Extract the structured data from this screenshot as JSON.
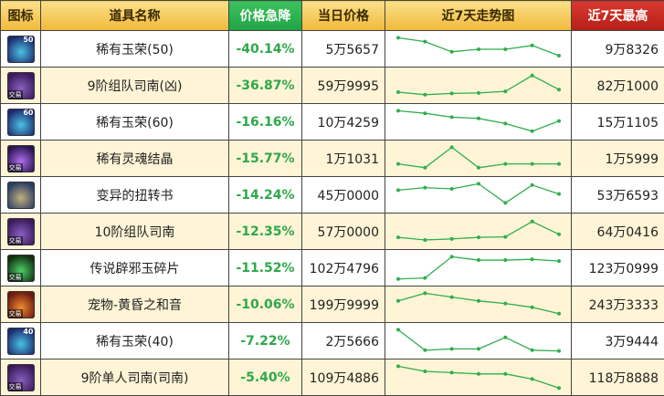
{
  "header": {
    "icon": "图标",
    "name": "道具名称",
    "drop": "价格急降",
    "today": "当日价格",
    "trend": "近7天走势图",
    "max": "近7天最高"
  },
  "rows": [
    {
      "name": "稀有玉荣(50)",
      "pct": "-40.14%",
      "price": "5万5657",
      "max": "9万8326",
      "icon": {
        "name": "jade-50-icon",
        "colors": [
          "#1c2a6e",
          "#4bc1e6"
        ],
        "label": "50",
        "tag": ""
      },
      "trend": [
        0.05,
        0.2,
        0.6,
        0.5,
        0.5,
        0.35,
        0.75
      ]
    },
    {
      "name": "9阶组队司南(凶)",
      "pct": "-36.87%",
      "price": "59万9995",
      "max": "82万1000",
      "icon": {
        "name": "compass-9-icon",
        "colors": [
          "#3a1a5a",
          "#8a60c0"
        ],
        "label": "",
        "tag": "交易"
      },
      "trend": [
        0.75,
        0.85,
        0.8,
        0.78,
        0.72,
        0.1,
        0.65
      ]
    },
    {
      "name": "稀有玉荣(60)",
      "pct": "-16.16%",
      "price": "10万4259",
      "max": "15万1105",
      "icon": {
        "name": "jade-60-icon",
        "colors": [
          "#1c2a6e",
          "#4bc1e6"
        ],
        "label": "60",
        "tag": ""
      },
      "trend": [
        0.05,
        0.15,
        0.3,
        0.35,
        0.55,
        0.85,
        0.45
      ]
    },
    {
      "name": "稀有灵魂结晶",
      "pct": "-15.77%",
      "price": "1万1031",
      "max": "1万5999",
      "icon": {
        "name": "soul-crystal-icon",
        "colors": [
          "#2a1450",
          "#b070f0"
        ],
        "label": "",
        "tag": "交易"
      },
      "trend": [
        0.7,
        0.85,
        0.05,
        0.85,
        0.7,
        0.7,
        0.7
      ]
    },
    {
      "name": "变异的扭转书",
      "pct": "-14.24%",
      "price": "45万0000",
      "max": "53万6593",
      "icon": {
        "name": "book-icon",
        "colors": [
          "#2a3e66",
          "#c2b07a"
        ],
        "label": "",
        "tag": ""
      },
      "trend": [
        0.3,
        0.2,
        0.25,
        0.05,
        0.8,
        0.1,
        0.45
      ]
    },
    {
      "name": "10阶组队司南",
      "pct": "-12.35%",
      "price": "57万0000",
      "max": "64万0416",
      "icon": {
        "name": "compass-10-icon",
        "colors": [
          "#3a1a5a",
          "#8a60c0"
        ],
        "label": "",
        "tag": "交易"
      },
      "trend": [
        0.72,
        0.82,
        0.78,
        0.72,
        0.7,
        0.1,
        0.6
      ]
    },
    {
      "name": "传说辟邪玉碎片",
      "pct": "-11.52%",
      "price": "102万4796",
      "max": "123万0999",
      "icon": {
        "name": "jade-shard-icon",
        "colors": [
          "#103010",
          "#4fd06a"
        ],
        "label": "",
        "tag": "交易"
      },
      "trend": [
        0.92,
        0.88,
        0.05,
        0.18,
        0.18,
        0.15,
        0.22
      ]
    },
    {
      "name": "宠物-黄昏之和音",
      "pct": "-10.06%",
      "price": "199万9999",
      "max": "243万3333",
      "icon": {
        "name": "pet-dusk-icon",
        "colors": [
          "#6a1a10",
          "#f08a30"
        ],
        "label": "",
        "tag": "交易"
      },
      "trend": [
        0.35,
        0.05,
        0.2,
        0.35,
        0.45,
        0.6,
        0.85
      ]
    },
    {
      "name": "稀有玉荣(40)",
      "pct": "-7.22%",
      "price": "2万5666",
      "max": "3万9444",
      "icon": {
        "name": "jade-40-icon",
        "colors": [
          "#1c2a6e",
          "#4bc1e6"
        ],
        "label": "40",
        "tag": ""
      },
      "trend": [
        0.05,
        0.85,
        0.8,
        0.8,
        0.35,
        0.85,
        0.88
      ]
    },
    {
      "name": "9阶单人司南(司南)",
      "pct": "-5.40%",
      "price": "109万4886",
      "max": "118万8888",
      "icon": {
        "name": "compass-solo-9-icon",
        "colors": [
          "#3a1a5a",
          "#8a60c0"
        ],
        "label": "",
        "tag": "交易"
      },
      "trend": [
        0.05,
        0.25,
        0.3,
        0.35,
        0.35,
        0.55,
        0.9
      ]
    }
  ]
}
